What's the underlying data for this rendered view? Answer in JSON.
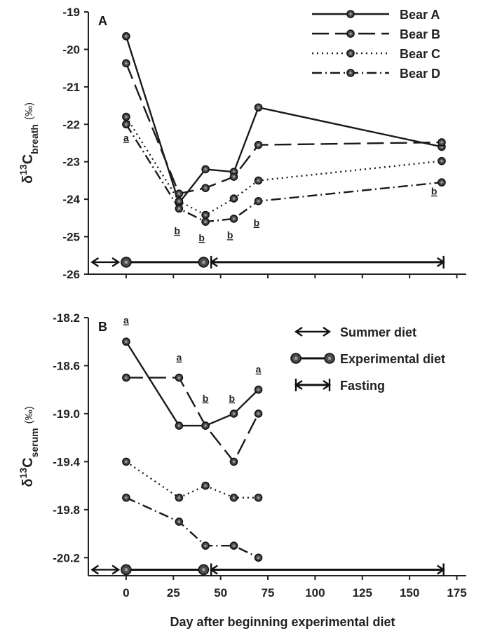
{
  "chart_data": [
    {
      "type": "line",
      "panel": "A",
      "ylabel": {
        "prefix": "δ",
        "sup": "13",
        "main": "C",
        "sub": "breath",
        "unit": "(‰)"
      },
      "ylim": [
        -26,
        -19
      ],
      "yticks": [
        -19,
        -20,
        -21,
        -22,
        -23,
        -24,
        -25,
        -26
      ],
      "series": [
        {
          "name": "Bear A",
          "x": [
            0,
            28,
            42,
            57,
            70,
            167
          ],
          "y": [
            -19.65,
            -24.1,
            -23.2,
            -23.27,
            -21.55,
            -22.6
          ]
        },
        {
          "name": "Bear B",
          "x": [
            0,
            28,
            42,
            57,
            70,
            167
          ],
          "y": [
            -20.37,
            -23.85,
            -23.7,
            -23.4,
            -22.55,
            -22.48
          ]
        },
        {
          "name": "Bear C",
          "x": [
            0,
            28,
            42,
            57,
            70,
            167
          ],
          "y": [
            -21.8,
            -24.05,
            -24.42,
            -23.98,
            -23.5,
            -22.98
          ]
        },
        {
          "name": "Bear D",
          "x": [
            0,
            28,
            42,
            57,
            70,
            167
          ],
          "y": [
            -22.0,
            -24.25,
            -24.6,
            -24.52,
            -24.05,
            -23.55
          ]
        }
      ],
      "annotations": [
        {
          "text": "a",
          "x": 0,
          "y": -22.45
        },
        {
          "text": "b",
          "x": 27,
          "y": -24.93
        },
        {
          "text": "b",
          "x": 40,
          "y": -25.12
        },
        {
          "text": "b",
          "x": 55,
          "y": -25.05
        },
        {
          "text": "b",
          "x": 69,
          "y": -24.72
        },
        {
          "text": "b",
          "x": 163,
          "y": -23.88
        }
      ],
      "periods_y": -25.68,
      "legend": {
        "position": "top-right",
        "entries": [
          "Bear A",
          "Bear B",
          "Bear C",
          "Bear D"
        ]
      }
    },
    {
      "type": "line",
      "panel": "B",
      "ylabel": {
        "prefix": "δ",
        "sup": "13",
        "main": "C",
        "sub": "serum",
        "unit": "(‰)"
      },
      "ylim": [
        -20.35,
        -18.2
      ],
      "yticks": [
        -18.2,
        -18.6,
        -19.0,
        -19.4,
        -19.8,
        -20.2
      ],
      "ytick_labels": [
        "-18.2",
        "-18.6",
        "-19.0",
        "-19.4",
        "-19.8",
        "-20.2"
      ],
      "series": [
        {
          "name": "Bear A",
          "x": [
            0,
            28,
            42,
            57,
            70
          ],
          "y": [
            -18.4,
            -19.1,
            -19.1,
            -19.0,
            -18.8
          ]
        },
        {
          "name": "Bear B",
          "x": [
            0,
            28,
            42,
            57,
            70
          ],
          "y": [
            -18.7,
            -18.7,
            -19.1,
            -19.4,
            -19.0
          ]
        },
        {
          "name": "Bear C",
          "x": [
            0,
            28,
            42,
            57,
            70
          ],
          "y": [
            -19.4,
            -19.7,
            -19.6,
            -19.7,
            -19.7
          ]
        },
        {
          "name": "Bear D",
          "x": [
            0,
            28,
            42,
            57,
            70
          ],
          "y": [
            -19.7,
            -19.9,
            -20.1,
            -20.1,
            -20.2
          ]
        }
      ],
      "annotations": [
        {
          "text": "a",
          "x": 0,
          "y": -18.25
        },
        {
          "text": "a",
          "x": 28,
          "y": -18.56
        },
        {
          "text": "b",
          "x": 42,
          "y": -18.9
        },
        {
          "text": "b",
          "x": 56,
          "y": -18.9
        },
        {
          "text": "a",
          "x": 70,
          "y": -18.66
        }
      ],
      "periods_y": -20.3,
      "legend": {
        "position": "top-right",
        "entries": [
          "Summer diet",
          "Experimental diet",
          "Fasting"
        ]
      }
    }
  ],
  "xaxis": {
    "label": "Day after beginning experimental diet",
    "ticks": [
      0,
      25,
      50,
      75,
      100,
      125,
      150,
      175
    ],
    "range": [
      -20,
      180
    ]
  },
  "periods": {
    "summer": [
      -18,
      -4
    ],
    "experimental": [
      0,
      41
    ],
    "fasting": [
      45,
      168
    ]
  },
  "colors": {
    "line": "#1a1a1a",
    "marker_fill": "#4a4a4a",
    "marker_edge": "#111111"
  }
}
